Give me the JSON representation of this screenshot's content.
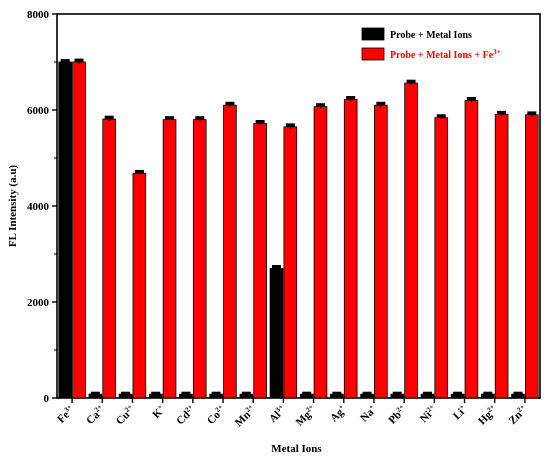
{
  "chart_data": {
    "type": "bar",
    "xlabel": "Metal Ions",
    "ylabel": "FL Intensity (a.u)",
    "ylim": [
      0,
      8000
    ],
    "yticks": [
      0,
      2000,
      4000,
      6000,
      8000
    ],
    "categories": [
      {
        "base": "Fe",
        "sup": "3+"
      },
      {
        "base": "Ca",
        "sup": "2+"
      },
      {
        "base": "Cu",
        "sup": "2+"
      },
      {
        "base": "K",
        "sup": "+"
      },
      {
        "base": "Cd",
        "sup": "2+"
      },
      {
        "base": "Co",
        "sup": "2+"
      },
      {
        "base": "Mn",
        "sup": "2+"
      },
      {
        "base": "Al",
        "sup": "3+"
      },
      {
        "base": "Mg",
        "sup": "2+"
      },
      {
        "base": "Ag",
        "sup": "+"
      },
      {
        "base": "Na",
        "sup": "+"
      },
      {
        "base": "Pb",
        "sup": "2+"
      },
      {
        "base": "Ni",
        "sup": "2+"
      },
      {
        "base": "Li",
        "sup": "+"
      },
      {
        "base": "Hg",
        "sup": "2+"
      },
      {
        "base": "Zn",
        "sup": "2+"
      }
    ],
    "series": [
      {
        "name": "Probe + Metal Ions",
        "color": "#000000",
        "values": [
          7000,
          80,
          80,
          80,
          80,
          80,
          80,
          2700,
          80,
          80,
          80,
          80,
          80,
          80,
          80,
          80
        ],
        "errors": [
          30,
          20,
          20,
          20,
          20,
          20,
          20,
          40,
          20,
          20,
          20,
          20,
          20,
          20,
          20,
          20
        ]
      },
      {
        "name": "Probe + Metal Ions + Fe",
        "name_sup": "3+",
        "color": "#ff0000",
        "values": [
          7000,
          5810,
          4680,
          5800,
          5800,
          6100,
          5720,
          5650,
          6070,
          6220,
          6100,
          6560,
          5840,
          6200,
          5910,
          5900
        ],
        "errors": [
          40,
          40,
          40,
          40,
          40,
          40,
          40,
          40,
          40,
          40,
          40,
          40,
          40,
          40,
          40,
          40
        ]
      }
    ],
    "legend_position": "top-right",
    "grid": false
  }
}
